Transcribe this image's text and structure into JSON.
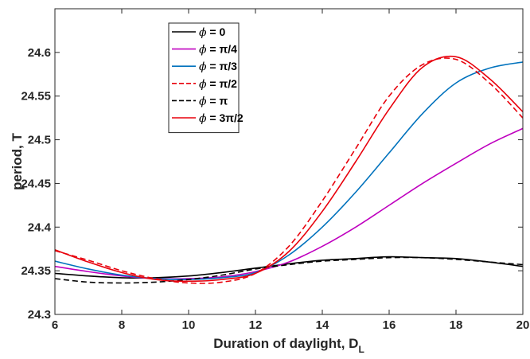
{
  "chart_data": {
    "type": "line",
    "title": "",
    "xlabel": "Duration of daylight, D",
    "xlabel_sub": "L",
    "ylabel": "period, T",
    "xlim": [
      6,
      20
    ],
    "ylim": [
      24.3,
      24.65
    ],
    "xticks": [
      "6",
      "8",
      "10",
      "12",
      "14",
      "16",
      "18",
      "20"
    ],
    "yticks": [
      "24.3",
      "24.35",
      "24.4",
      "24.45",
      "24.5",
      "24.55",
      "24.6"
    ],
    "grid": false,
    "legend_position": "top-left",
    "series": [
      {
        "name": "ϕ = 0",
        "color": "#000000",
        "dash": "solid",
        "x": [
          6,
          7,
          8,
          9,
          10,
          11,
          12,
          13,
          14,
          15,
          16,
          17,
          18,
          19,
          20
        ],
        "y": [
          24.347,
          24.344,
          24.342,
          24.342,
          24.344,
          24.348,
          24.353,
          24.358,
          24.362,
          24.364,
          24.366,
          24.365,
          24.364,
          24.36,
          24.355
        ]
      },
      {
        "name": "ϕ = π/4",
        "color": "#bf00bf",
        "dash": "solid",
        "x": [
          6,
          7,
          8,
          9,
          10,
          11,
          12,
          13,
          14,
          15,
          16,
          17,
          18,
          19,
          20
        ],
        "y": [
          24.355,
          24.349,
          24.344,
          24.341,
          24.341,
          24.343,
          24.349,
          24.36,
          24.378,
          24.4,
          24.425,
          24.45,
          24.473,
          24.495,
          24.513
        ]
      },
      {
        "name": "ϕ = π/3",
        "color": "#0072bd",
        "dash": "solid",
        "x": [
          6,
          7,
          8,
          9,
          10,
          11,
          12,
          13,
          14,
          15,
          16,
          17,
          18,
          19,
          20
        ],
        "y": [
          24.361,
          24.352,
          24.345,
          24.341,
          24.34,
          24.342,
          24.348,
          24.368,
          24.4,
          24.44,
          24.485,
          24.53,
          24.565,
          24.582,
          24.589
        ]
      },
      {
        "name": "ϕ = π/2",
        "color": "#e8000b",
        "dash": "dashed",
        "x": [
          6,
          7,
          8,
          9,
          10,
          11,
          12,
          13,
          14,
          15,
          16,
          17,
          18,
          19,
          20
        ],
        "y": [
          24.373,
          24.362,
          24.35,
          24.341,
          24.336,
          24.337,
          24.347,
          24.378,
          24.43,
          24.49,
          24.55,
          24.586,
          24.592,
          24.565,
          24.525
        ]
      },
      {
        "name": "ϕ = π",
        "color": "#000000",
        "dash": "dashed",
        "x": [
          6,
          7,
          8,
          9,
          10,
          11,
          12,
          13,
          14,
          15,
          16,
          17,
          18,
          19,
          20
        ],
        "y": [
          24.341,
          24.337,
          24.336,
          24.337,
          24.34,
          24.345,
          24.352,
          24.357,
          24.361,
          24.363,
          24.365,
          24.365,
          24.363,
          24.36,
          24.357
        ]
      },
      {
        "name": "ϕ = 3π/2",
        "color": "#e8000b",
        "dash": "solid",
        "x": [
          6,
          7,
          8,
          9,
          10,
          11,
          12,
          13,
          14,
          15,
          16,
          17,
          18,
          19,
          20
        ],
        "y": [
          24.374,
          24.36,
          24.348,
          24.34,
          24.338,
          24.34,
          24.347,
          24.372,
          24.418,
          24.475,
          24.535,
          24.583,
          24.595,
          24.57,
          24.532
        ]
      }
    ]
  }
}
